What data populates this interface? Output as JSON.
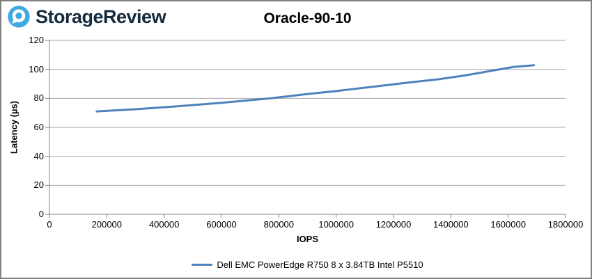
{
  "header": {
    "brand": "StorageReview"
  },
  "chart_data": {
    "type": "line",
    "title": "Oracle-90-10",
    "xlabel": "IOPS",
    "ylabel": "Latency (µs)",
    "xlim": [
      0,
      1800000
    ],
    "ylim": [
      0,
      120
    ],
    "x_ticks": [
      0,
      200000,
      400000,
      600000,
      800000,
      1000000,
      1200000,
      1400000,
      1600000,
      1800000
    ],
    "y_ticks": [
      0,
      20,
      40,
      60,
      80,
      100,
      120
    ],
    "grid": "horizontal-only",
    "legend_position": "bottom-center",
    "series": [
      {
        "name": "Dell EMC PowerEdge R750 8 x 3.84TB Intel P5510",
        "color": "#4F81BD",
        "points": [
          [
            165000,
            71.0
          ],
          [
            300000,
            72.5
          ],
          [
            450000,
            74.6
          ],
          [
            600000,
            76.9
          ],
          [
            772000,
            80.0
          ],
          [
            900000,
            83.0
          ],
          [
            1000000,
            85.0
          ],
          [
            1150000,
            88.5
          ],
          [
            1250000,
            90.8
          ],
          [
            1350000,
            93.0
          ],
          [
            1450000,
            95.8
          ],
          [
            1550000,
            99.3
          ],
          [
            1620000,
            101.7
          ],
          [
            1690000,
            102.8
          ]
        ]
      }
    ]
  },
  "colors": {
    "series_line": "#4F81BD",
    "gridline": "#A6A6A6",
    "axis": "#808080",
    "logo_blue": "#3FA9E1",
    "brand_navy": "#152B3E",
    "title_text": "#000000",
    "frame_border": "#808080"
  }
}
